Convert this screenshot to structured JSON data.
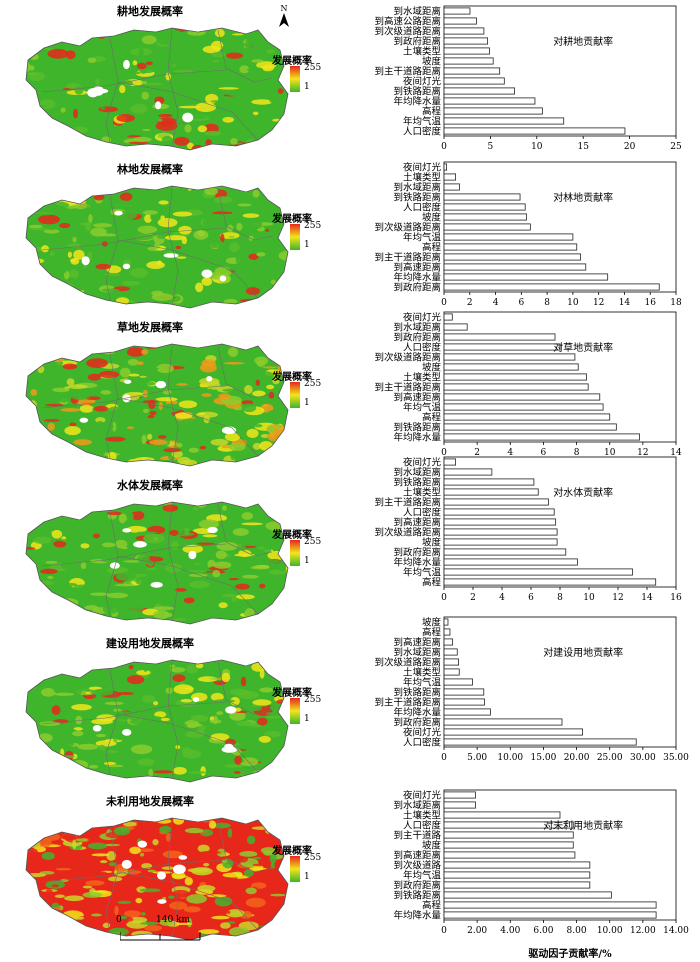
{
  "colors": {
    "high": "#e8271b",
    "mid": "#f2e51a",
    "low": "#3fb52b",
    "bar_fill": "#ffffff",
    "bar_stroke": "#222222"
  },
  "north_label": "N",
  "scale": {
    "zero": "0",
    "distance": "140 km"
  },
  "legend": {
    "title": "发展概率",
    "max": "255",
    "min": "1"
  },
  "maps": [
    {
      "title": "耕地发展概率",
      "dominant": "low"
    },
    {
      "title": "林地发展概率",
      "dominant": "low"
    },
    {
      "title": "草地发展概率",
      "dominant": "mixed"
    },
    {
      "title": "水体发展概率",
      "dominant": "low"
    },
    {
      "title": "建设用地发展概率",
      "dominant": "low"
    },
    {
      "title": "未利用地发展概率",
      "dominant": "high"
    }
  ],
  "x_axis_title": "驱动因子贡献率/%",
  "chart_data": [
    {
      "type": "bar",
      "orientation": "horizontal",
      "title": "对耕地贡献率",
      "categories": [
        "到水域距离",
        "到高速公路距离",
        "到次级道路距离",
        "到政府距离",
        "土壤类型",
        "坡度",
        "到主干道路距离",
        "夜间灯光",
        "到铁路距离",
        "年均降水量",
        "高程",
        "年均气温",
        "人口密度"
      ],
      "values": [
        2.8,
        3.5,
        4.3,
        4.7,
        4.9,
        5.3,
        6.0,
        6.5,
        7.6,
        9.8,
        10.6,
        12.9,
        19.5
      ],
      "xlim": [
        0,
        25
      ],
      "ticks": [
        "0",
        "5",
        "10",
        "15",
        "20",
        "25"
      ]
    },
    {
      "type": "bar",
      "orientation": "horizontal",
      "title": "对林地贡献率",
      "categories": [
        "夜间灯光",
        "土壤类型",
        "到水域距离",
        "到铁路距离",
        "人口密度",
        "坡度",
        "到次级道路距离",
        "年均气温",
        "高程",
        "到主干道路距离",
        "到高速距离",
        "年均降水量",
        "到政府距离"
      ],
      "values": [
        0.2,
        0.9,
        1.2,
        5.9,
        6.3,
        6.4,
        6.7,
        10.0,
        10.3,
        10.6,
        11.0,
        12.7,
        16.7
      ],
      "xlim": [
        0,
        18
      ],
      "ticks": [
        "0",
        "2",
        "4",
        "6",
        "8",
        "10",
        "12",
        "14",
        "16",
        "18"
      ]
    },
    {
      "type": "bar",
      "orientation": "horizontal",
      "title": "对草地贡献率",
      "categories": [
        "夜间灯光",
        "到水域距离",
        "到政府距离",
        "人口密度",
        "到次级道路距离",
        "坡度",
        "土壤类型",
        "到主干道路距离",
        "到高速距离",
        "年均气温",
        "高程",
        "到铁路距离",
        "年均降水量"
      ],
      "values": [
        0.5,
        1.4,
        6.7,
        7.0,
        7.9,
        8.1,
        8.6,
        8.7,
        9.4,
        9.6,
        10.0,
        10.4,
        11.8
      ],
      "xlim": [
        0,
        14
      ],
      "ticks": [
        "0",
        "2",
        "4",
        "6",
        "8",
        "10",
        "12",
        "14"
      ]
    },
    {
      "type": "bar",
      "orientation": "horizontal",
      "title": "对水体贡献率",
      "categories": [
        "夜间灯光",
        "到水域距离",
        "到铁路距离",
        "土壤类型",
        "到主干道路距离",
        "人口密度",
        "到高速距离",
        "到次级道路距离",
        "坡度",
        "到政府距离",
        "年均降水量",
        "年均气温",
        "高程"
      ],
      "values": [
        0.8,
        3.3,
        6.2,
        6.5,
        7.2,
        7.6,
        7.7,
        7.8,
        7.8,
        8.4,
        9.2,
        13.0,
        14.6
      ],
      "xlim": [
        0,
        16
      ],
      "ticks": [
        "0",
        "2",
        "4",
        "6",
        "8",
        "10",
        "12",
        "14",
        "16"
      ]
    },
    {
      "type": "bar",
      "orientation": "horizontal",
      "title": "对建设用地贡献率",
      "categories": [
        "坡度",
        "高程",
        "到高速距离",
        "到水域距离",
        "到次级道路距离",
        "土壤类型",
        "年均气温",
        "到铁路距离",
        "到主干道路距离",
        "年均降水量",
        "到政府距离",
        "夜间灯光",
        "人口密度"
      ],
      "values": [
        0.6,
        0.9,
        1.3,
        2.0,
        2.2,
        2.3,
        4.3,
        6.0,
        6.1,
        7.0,
        17.8,
        20.9,
        29.0
      ],
      "xlim": [
        0,
        35
      ],
      "ticks": [
        "0",
        "5.00",
        "10.00",
        "15.00",
        "20.00",
        "25.00",
        "30.00",
        "35.00"
      ]
    },
    {
      "type": "bar",
      "orientation": "horizontal",
      "title": "对未利用地贡献率",
      "categories": [
        "夜间灯光",
        "到水域距离",
        "土壤类型",
        "人口密度",
        "到主干道路",
        "坡度",
        "到高速距离",
        "到次级道路",
        "年均气温",
        "到政府距离",
        "到铁路距离",
        "高程",
        "年均降水量"
      ],
      "values": [
        1.9,
        1.9,
        7.0,
        7.8,
        7.8,
        7.8,
        7.9,
        8.8,
        8.8,
        8.8,
        10.1,
        12.8,
        12.8
      ],
      "xlim": [
        0,
        14
      ],
      "ticks": [
        "0",
        "2.00",
        "4.00",
        "6.00",
        "8.00",
        "10.00",
        "12.00",
        "14.00"
      ]
    }
  ]
}
